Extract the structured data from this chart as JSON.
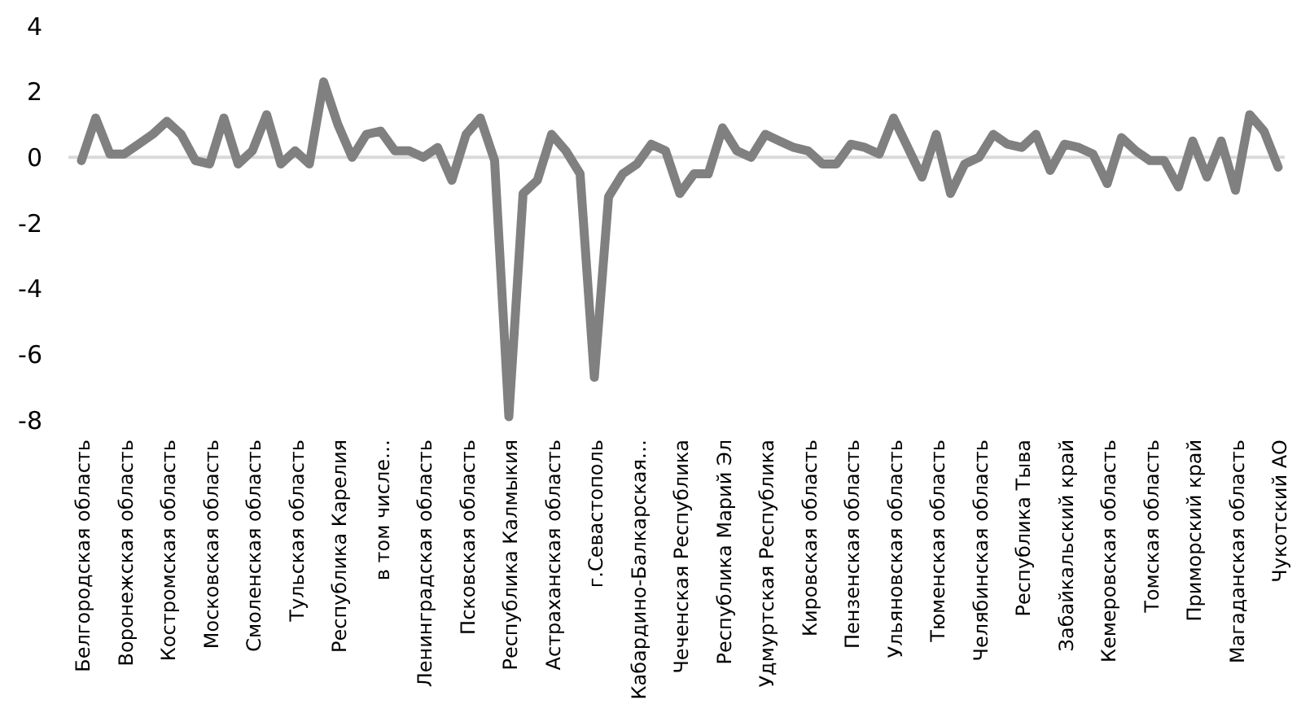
{
  "chart_data": {
    "type": "line",
    "categories": [
      "Белгородская область",
      null,
      null,
      "Воронежская область",
      null,
      null,
      "Костромская область",
      null,
      null,
      "Московская область",
      null,
      null,
      "Смоленская область",
      null,
      null,
      "Тульская область",
      null,
      null,
      "Республика Карелия",
      null,
      null,
      "в том числе…",
      null,
      null,
      "Ленинградская область",
      null,
      null,
      "Псковская область",
      null,
      null,
      "Республика Калмыкия",
      null,
      null,
      "Астраханская область",
      null,
      null,
      "г.Севастополь",
      null,
      null,
      "Кабардино-Балкарская…",
      null,
      null,
      "Чеченская Республика",
      null,
      null,
      "Республика Марий Эл",
      null,
      null,
      "Удмуртская Республика",
      null,
      null,
      "Кировская область",
      null,
      null,
      "Пензенская область",
      null,
      null,
      "Ульяновская область",
      null,
      null,
      "Тюменская область",
      null,
      null,
      "Челябинская область",
      null,
      null,
      "Республика Тыва",
      null,
      null,
      "Забайкальский край",
      null,
      null,
      "Кемеровская область",
      null,
      null,
      "Томская область",
      null,
      null,
      "Приморский край",
      null,
      null,
      "Магаданская область",
      null,
      null,
      "Чукотский АО"
    ],
    "series": [
      {
        "color": "#808080",
        "values": [
          -0.1,
          1.2,
          0.1,
          0.1,
          0.4,
          0.7,
          1.1,
          0.7,
          -0.1,
          -0.2,
          1.2,
          -0.2,
          0.2,
          1.3,
          -0.2,
          0.2,
          -0.2,
          2.3,
          1.0,
          0.0,
          0.7,
          0.8,
          0.2,
          0.2,
          0.0,
          0.3,
          -0.7,
          0.7,
          1.2,
          -0.1,
          -7.9,
          -1.1,
          -0.7,
          0.7,
          0.2,
          -0.5,
          -6.7,
          -1.2,
          -0.5,
          -0.2,
          0.4,
          0.2,
          -1.1,
          -0.5,
          -0.5,
          0.9,
          0.2,
          0.0,
          0.7,
          0.5,
          0.3,
          0.2,
          -0.2,
          -0.2,
          0.4,
          0.3,
          0.1,
          1.2,
          0.3,
          -0.6,
          0.7,
          -1.1,
          -0.2,
          0.0,
          0.7,
          0.4,
          0.3,
          0.7,
          -0.4,
          0.4,
          0.3,
          0.1,
          -0.8,
          0.6,
          0.2,
          -0.1,
          -0.1,
          -0.9,
          0.5,
          -0.6,
          0.5,
          -1.0,
          1.3,
          0.8,
          -0.3
        ]
      }
    ],
    "ylim": [
      -8,
      4
    ],
    "yticks": [
      -8,
      -6,
      -4,
      -2,
      0,
      2,
      4
    ],
    "legend": false,
    "line_style": "solid",
    "marker": "none"
  }
}
